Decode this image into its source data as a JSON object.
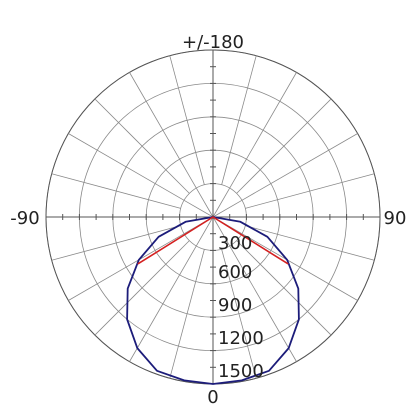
{
  "chart_data": {
    "type": "polar",
    "title": "",
    "angle_labels": {
      "top": "+/-180",
      "left": "-90",
      "right": "90",
      "bottom": "0"
    },
    "radial_ticks": [
      "300",
      "600",
      "900",
      "1200",
      "1500"
    ],
    "radial_max": 1500,
    "grid": true,
    "series": [
      {
        "color": "#1c1c7a",
        "points": [
          {
            "angle": 0,
            "r": 1500
          },
          {
            "angle": 10,
            "r": 1490
          },
          {
            "angle": 20,
            "r": 1470
          },
          {
            "angle": 30,
            "r": 1360
          },
          {
            "angle": 40,
            "r": 1200
          },
          {
            "angle": 50,
            "r": 1000
          },
          {
            "angle": 60,
            "r": 770
          },
          {
            "angle": 70,
            "r": 520
          },
          {
            "angle": 80,
            "r": 250
          },
          {
            "angle": 90,
            "r": 0
          },
          {
            "angle": -10,
            "r": 1490
          },
          {
            "angle": -20,
            "r": 1470
          },
          {
            "angle": -30,
            "r": 1360
          },
          {
            "angle": -40,
            "r": 1200
          },
          {
            "angle": -50,
            "r": 1000
          },
          {
            "angle": -60,
            "r": 770
          },
          {
            "angle": -70,
            "r": 520
          },
          {
            "angle": -80,
            "r": 250
          },
          {
            "angle": -90,
            "r": 0
          }
        ]
      },
      {
        "color": "#d42020",
        "points": [
          {
            "angle": -90,
            "r": 0
          },
          {
            "angle": -58,
            "r": 790
          },
          {
            "angle": -90,
            "r": 0
          },
          {
            "angle": 58,
            "r": 790
          },
          {
            "angle": 90,
            "r": 0
          }
        ]
      }
    ]
  }
}
